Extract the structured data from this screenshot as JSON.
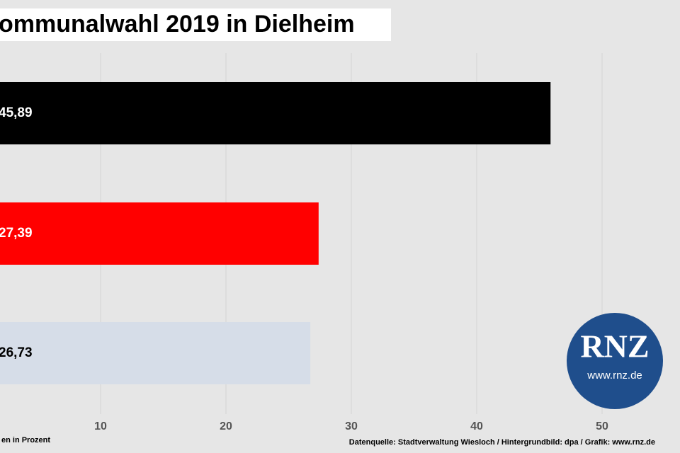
{
  "chart_data": {
    "type": "bar",
    "orientation": "horizontal",
    "title": "ommunalwahl 2019 in Dielheim",
    "values": [
      45.89,
      27.39,
      26.73
    ],
    "value_labels": [
      "45,89",
      "27,39",
      "26,73"
    ],
    "colors": [
      "#000000",
      "#ff0000",
      "#d6dde8"
    ],
    "label_colors": [
      "#ffffff",
      "#ffffff",
      "#000000"
    ],
    "xlim": [
      0,
      56
    ],
    "xticks": [
      10,
      20,
      30,
      40,
      50
    ],
    "grid": true,
    "axis_note": "en in Prozent",
    "source": "Datenquelle: Stadtverwaltung Wiesloch / Hintergrundbild: dpa / Grafik: www.rnz.de",
    "logo": {
      "text": "RNZ",
      "url": "www.rnz.de"
    }
  }
}
